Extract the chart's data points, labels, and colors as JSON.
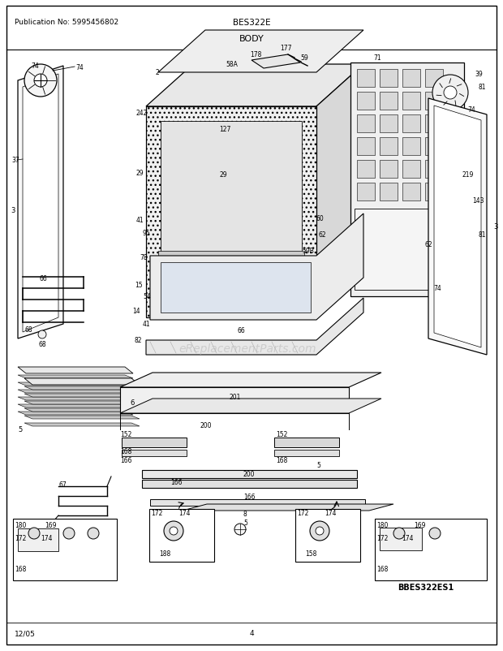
{
  "title_center": "BES322E",
  "title_sub": "BODY",
  "pub_no": "Publication No: 5995456802",
  "date": "12/05",
  "page": "4",
  "model": "BBES322ES1",
  "watermark": "eReplacementParts.com",
  "bg_color": "#ffffff",
  "border_color": "#000000",
  "text_color": "#000000",
  "fig_width": 6.2,
  "fig_height": 8.03,
  "dpi": 100
}
